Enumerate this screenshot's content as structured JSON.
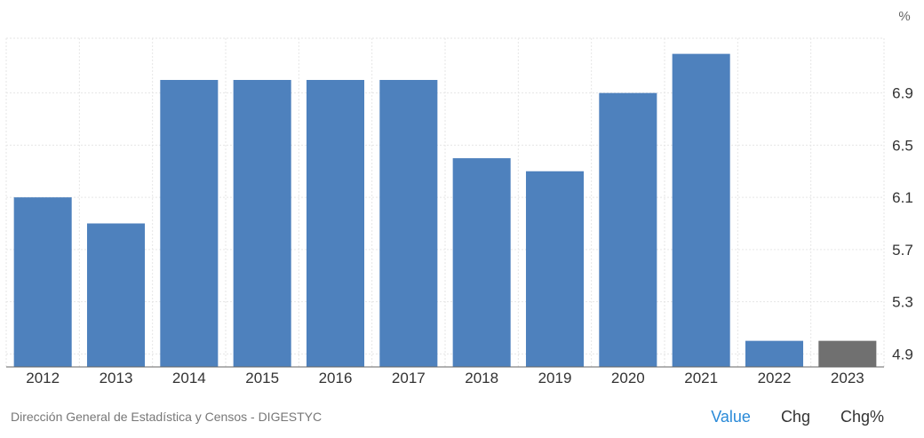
{
  "chart_data": {
    "type": "bar",
    "categories": [
      "2012",
      "2013",
      "2014",
      "2015",
      "2016",
      "2017",
      "2018",
      "2019",
      "2020",
      "2021",
      "2022",
      "2023"
    ],
    "values": [
      6.1,
      5.9,
      7.0,
      7.0,
      7.0,
      7.0,
      6.4,
      6.3,
      6.9,
      7.2,
      5.0,
      5.0
    ],
    "forecast_index": 11,
    "colors": {
      "bar": "#4e81bd",
      "forecast": "#707070",
      "grid": "#e6e6e6",
      "axis": "#666666"
    },
    "y_ticks": [
      "4.9",
      "5.3",
      "5.7",
      "6.1",
      "6.5",
      "6.9"
    ],
    "ylim": [
      4.8,
      7.32
    ],
    "unit": "%",
    "grid": true
  },
  "footer": {
    "source": "Dirección General de Estadística y Censos - DIGESTYC",
    "tabs": [
      {
        "label": "Value",
        "active": true
      },
      {
        "label": "Chg",
        "active": false
      },
      {
        "label": "Chg%",
        "active": false
      }
    ]
  }
}
